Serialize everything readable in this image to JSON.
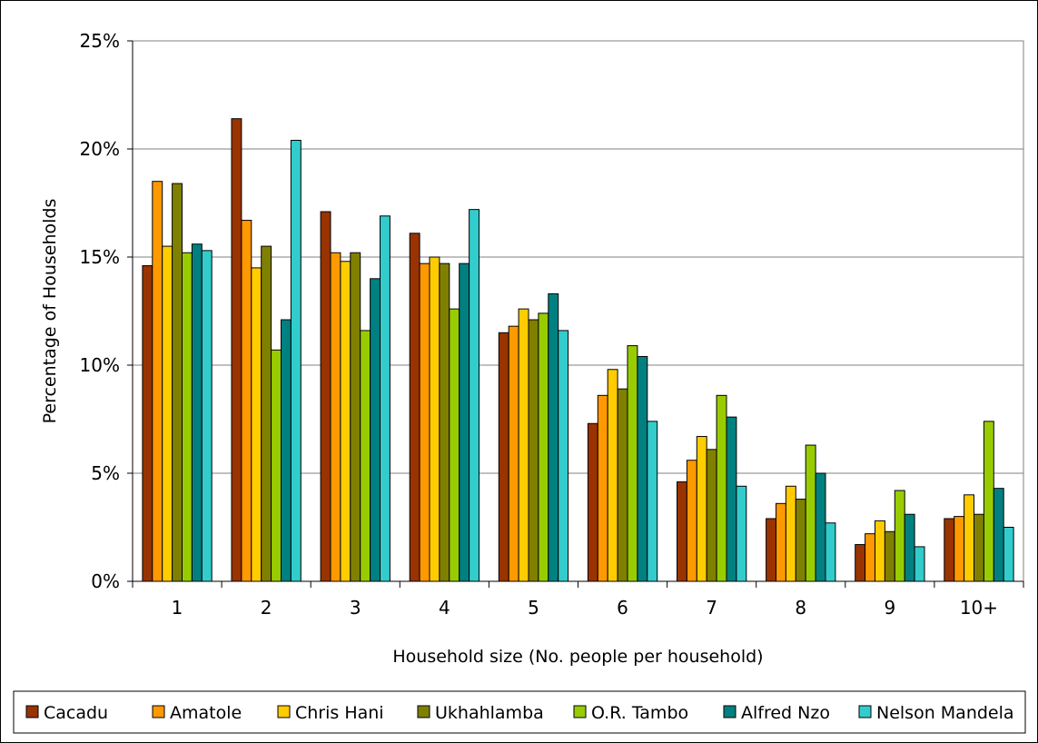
{
  "chart_data": {
    "type": "bar",
    "title": "",
    "xlabel": "Household size (No. people per household)",
    "ylabel": "Percentage of Households",
    "ylim": [
      0,
      25
    ],
    "y_ticks": [
      "0%",
      "5%",
      "10%",
      "15%",
      "20%",
      "25%"
    ],
    "y_tick_values": [
      0,
      5,
      10,
      15,
      20,
      25
    ],
    "grid": "horizontal",
    "legend_position": "bottom",
    "categories": [
      "1",
      "2",
      "3",
      "4",
      "5",
      "6",
      "7",
      "8",
      "9",
      "10+"
    ],
    "series": [
      {
        "name": "Cacadu",
        "color": "#993300",
        "values": [
          14.6,
          21.4,
          17.1,
          16.1,
          11.5,
          7.3,
          4.6,
          2.9,
          1.7,
          2.9
        ]
      },
      {
        "name": "Amatole",
        "color": "#FF9900",
        "values": [
          18.5,
          16.7,
          15.2,
          14.7,
          11.8,
          8.6,
          5.6,
          3.6,
          2.2,
          3.0
        ]
      },
      {
        "name": "Chris Hani",
        "color": "#FFCC00",
        "values": [
          15.5,
          14.5,
          14.8,
          15.0,
          12.6,
          9.8,
          6.7,
          4.4,
          2.8,
          4.0
        ]
      },
      {
        "name": "Ukhahlamba",
        "color": "#808000",
        "values": [
          18.4,
          15.5,
          15.2,
          14.7,
          12.1,
          8.9,
          6.1,
          3.8,
          2.3,
          3.1
        ]
      },
      {
        "name": "O.R. Tambo",
        "color": "#99CC00",
        "values": [
          15.2,
          10.7,
          11.6,
          12.6,
          12.4,
          10.9,
          8.6,
          6.3,
          4.2,
          7.4
        ]
      },
      {
        "name": "Alfred Nzo",
        "color": "#008080",
        "values": [
          15.6,
          12.1,
          14.0,
          14.7,
          13.3,
          10.4,
          7.6,
          5.0,
          3.1,
          4.3
        ]
      },
      {
        "name": "Nelson Mandela",
        "color": "#33CCCC",
        "values": [
          15.3,
          20.4,
          16.9,
          17.2,
          11.6,
          7.4,
          4.4,
          2.7,
          1.6,
          2.5
        ]
      }
    ]
  }
}
